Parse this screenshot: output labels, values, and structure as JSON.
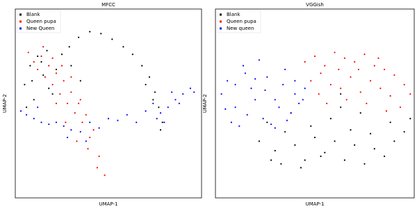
{
  "chart_data": [
    {
      "type": "scatter",
      "title": "MFCC",
      "x_label": "UMAP-1",
      "y_label": "UMAP-2",
      "xlim": [
        0,
        100
      ],
      "ylim": [
        0,
        100
      ],
      "legend": "upper left",
      "series": [
        {
          "name": "Blank",
          "color": "#000000",
          "x": [
            5,
            8,
            10,
            12,
            15,
            18,
            6,
            9,
            14,
            20,
            17,
            22,
            25,
            29,
            34,
            40,
            46,
            52,
            58,
            63,
            68,
            72,
            75,
            77,
            79,
            78,
            74,
            70,
            30,
            35
          ],
          "values": [
            60,
            70,
            52,
            75,
            65,
            58,
            48,
            62,
            72,
            55,
            78,
            68,
            76,
            80,
            85,
            88,
            87,
            84,
            80,
            76,
            70,
            64,
            56,
            48,
            40,
            36,
            52,
            60,
            70,
            62
          ]
        },
        {
          "name": "Queen pupa",
          "color": "#ff0000",
          "x": [
            7,
            10,
            12,
            14,
            16,
            18,
            20,
            22,
            24,
            26,
            28,
            30,
            32,
            34,
            36,
            38,
            40,
            42,
            45,
            48,
            15,
            20,
            25,
            30,
            35,
            27,
            33,
            39,
            44,
            22
          ],
          "values": [
            77,
            72,
            68,
            75,
            64,
            70,
            60,
            66,
            55,
            62,
            50,
            56,
            45,
            50,
            40,
            44,
            32,
            36,
            22,
            12,
            80,
            74,
            70,
            64,
            52,
            40,
            30,
            26,
            16,
            50
          ]
        },
        {
          "name": "New Queen",
          "color": "#0000ff",
          "x": [
            3,
            6,
            10,
            14,
            18,
            22,
            26,
            30,
            35,
            40,
            45,
            50,
            55,
            60,
            65,
            70,
            74,
            78,
            82,
            86,
            90,
            94,
            96,
            38,
            76,
            80,
            88,
            84,
            12,
            28
          ],
          "values": [
            46,
            44,
            42,
            40,
            39,
            40,
            38,
            36,
            35,
            40,
            37,
            42,
            41,
            44,
            40,
            46,
            50,
            45,
            48,
            52,
            55,
            58,
            56,
            30,
            42,
            40,
            50,
            56,
            48,
            32
          ]
        }
      ]
    },
    {
      "type": "scatter",
      "title": "VGGish",
      "x_label": "UMAP-1",
      "y_label": "UMAP-2",
      "xlim": [
        0,
        100
      ],
      "ylim": [
        0,
        100
      ],
      "legend": "upper left",
      "series": [
        {
          "name": "Blank",
          "color": "#000000",
          "x": [
            22,
            26,
            30,
            35,
            40,
            45,
            50,
            55,
            60,
            65,
            70,
            75,
            80,
            85,
            90,
            95,
            98,
            28,
            38,
            48,
            58,
            68,
            78,
            88,
            33,
            43,
            53,
            63,
            73,
            63
          ],
          "values": [
            30,
            40,
            25,
            35,
            28,
            20,
            32,
            24,
            30,
            20,
            28,
            18,
            26,
            22,
            30,
            35,
            42,
            20,
            45,
            38,
            42,
            36,
            34,
            40,
            18,
            16,
            22,
            48,
            45,
            55
          ]
        },
        {
          "name": "Queen pupa",
          "color": "#ff0000",
          "x": [
            45,
            50,
            55,
            60,
            65,
            70,
            75,
            80,
            85,
            90,
            95,
            98,
            48,
            53,
            58,
            63,
            68,
            73,
            78,
            83,
            88,
            93,
            56,
            66,
            76,
            86,
            62,
            72,
            82,
            52
          ],
          "values": [
            72,
            75,
            70,
            77,
            74,
            72,
            76,
            70,
            68,
            65,
            60,
            55,
            62,
            66,
            60,
            58,
            64,
            56,
            62,
            58,
            54,
            48,
            50,
            52,
            50,
            46,
            68,
            68,
            74,
            55
          ]
        },
        {
          "name": "New queen",
          "color": "#0000ff",
          "x": [
            3,
            6,
            10,
            14,
            18,
            22,
            26,
            30,
            34,
            38,
            42,
            45,
            8,
            12,
            16,
            20,
            24,
            28,
            32,
            36,
            40,
            5,
            15,
            25,
            35,
            44,
            10,
            20,
            30,
            40
          ],
          "values": [
            55,
            62,
            48,
            70,
            58,
            73,
            64,
            52,
            60,
            45,
            50,
            58,
            40,
            38,
            44,
            52,
            42,
            39,
            48,
            41,
            55,
            47,
            66,
            57,
            68,
            52,
            60,
            63,
            37,
            62
          ]
        }
      ]
    }
  ]
}
